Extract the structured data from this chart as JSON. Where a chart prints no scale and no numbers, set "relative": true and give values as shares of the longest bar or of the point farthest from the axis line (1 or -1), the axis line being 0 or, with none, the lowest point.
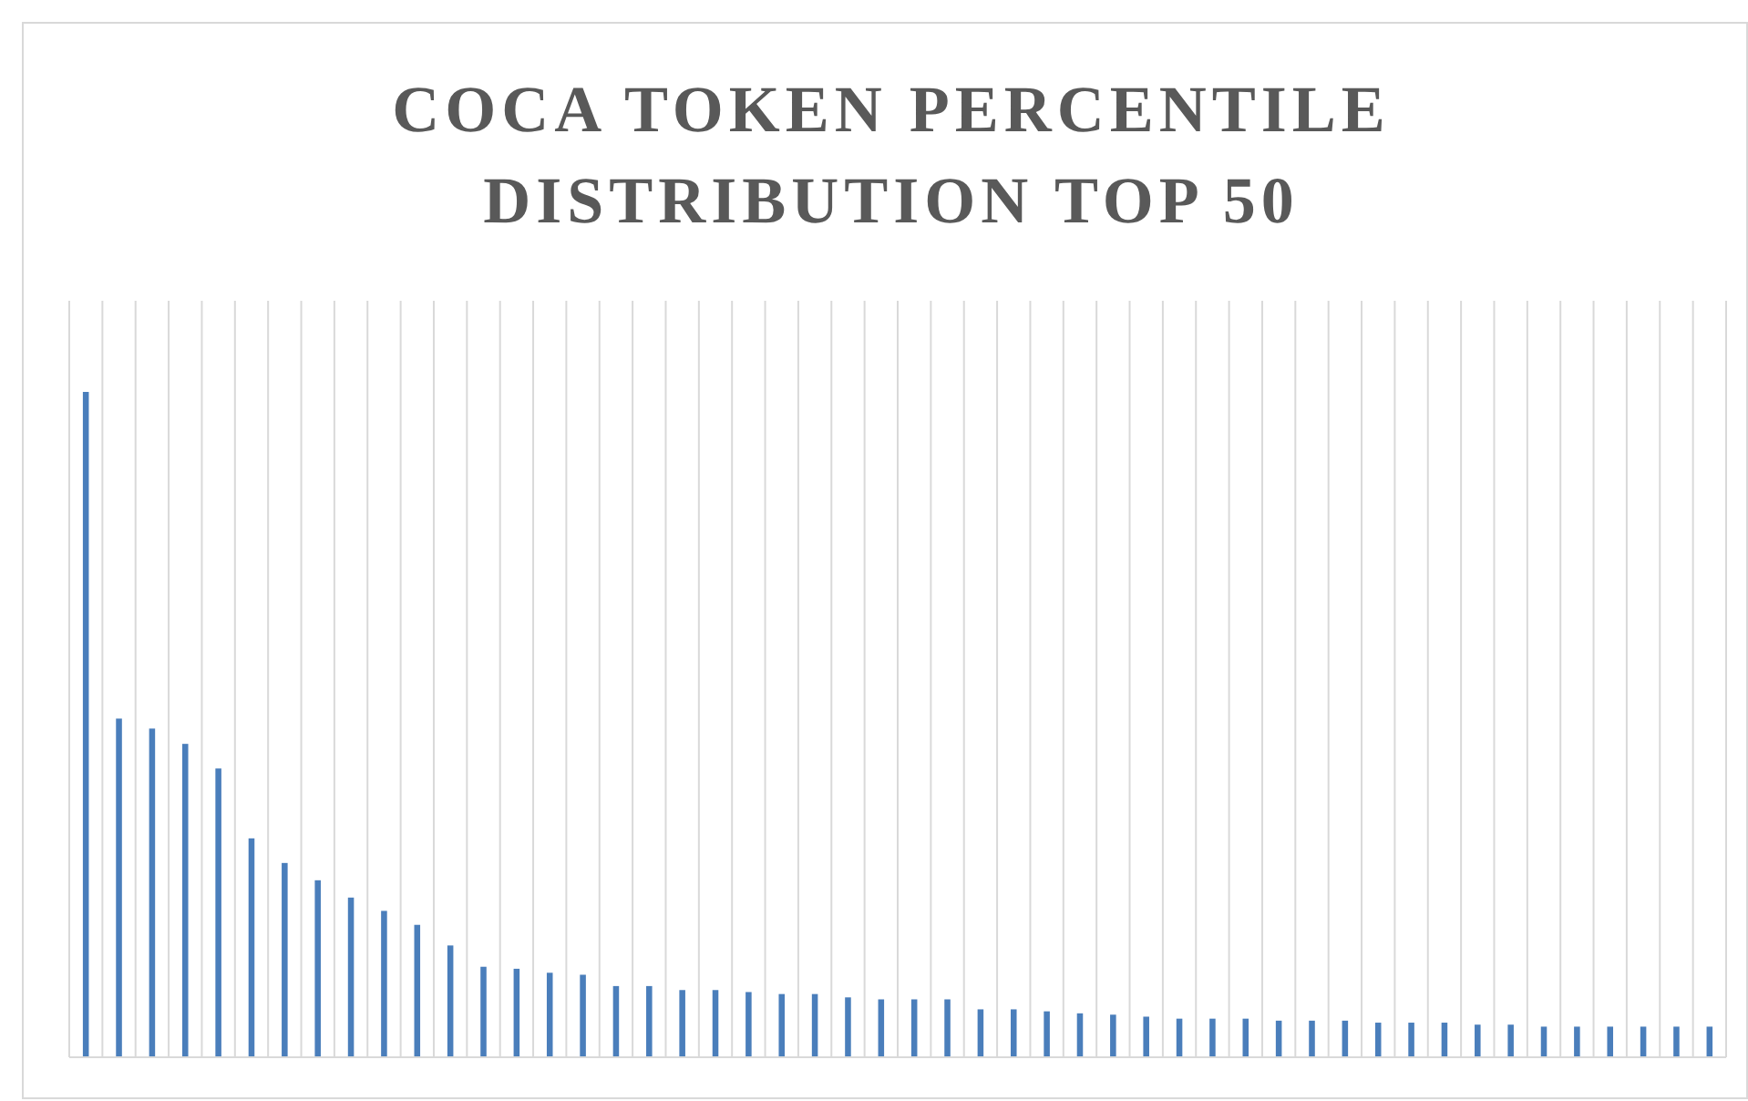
{
  "chart_data": {
    "type": "bar",
    "title": "COCA TOKEN PERCENTILE DISTRIBUTION TOP 50",
    "relative": true,
    "grid": "x",
    "color": "#4a7ebb",
    "categories": [
      null,
      null,
      null,
      null,
      null,
      null,
      null,
      null,
      null,
      null,
      null,
      null,
      null,
      null,
      null,
      null,
      null,
      null,
      null,
      null,
      null,
      null,
      null,
      null,
      null,
      null,
      null,
      null,
      null,
      null,
      null,
      null,
      null,
      null,
      null,
      null,
      null,
      null,
      null,
      null,
      null,
      null,
      null,
      null,
      null,
      null,
      null,
      null,
      null,
      null
    ],
    "values": [
      1,
      0.509,
      0.494,
      0.471,
      0.434,
      0.329,
      0.292,
      0.266,
      0.24,
      0.22,
      0.199,
      0.168,
      0.136,
      0.133,
      0.127,
      0.124,
      0.107,
      0.107,
      0.101,
      0.101,
      0.098,
      0.095,
      0.095,
      0.09,
      0.087,
      0.087,
      0.087,
      0.072,
      0.072,
      0.069,
      0.066,
      0.064,
      0.061,
      0.058,
      0.058,
      0.058,
      0.055,
      0.055,
      0.055,
      0.052,
      0.052,
      0.052,
      0.049,
      0.049,
      0.046,
      0.046,
      0.046,
      0.046,
      0.046,
      0.046
    ]
  }
}
